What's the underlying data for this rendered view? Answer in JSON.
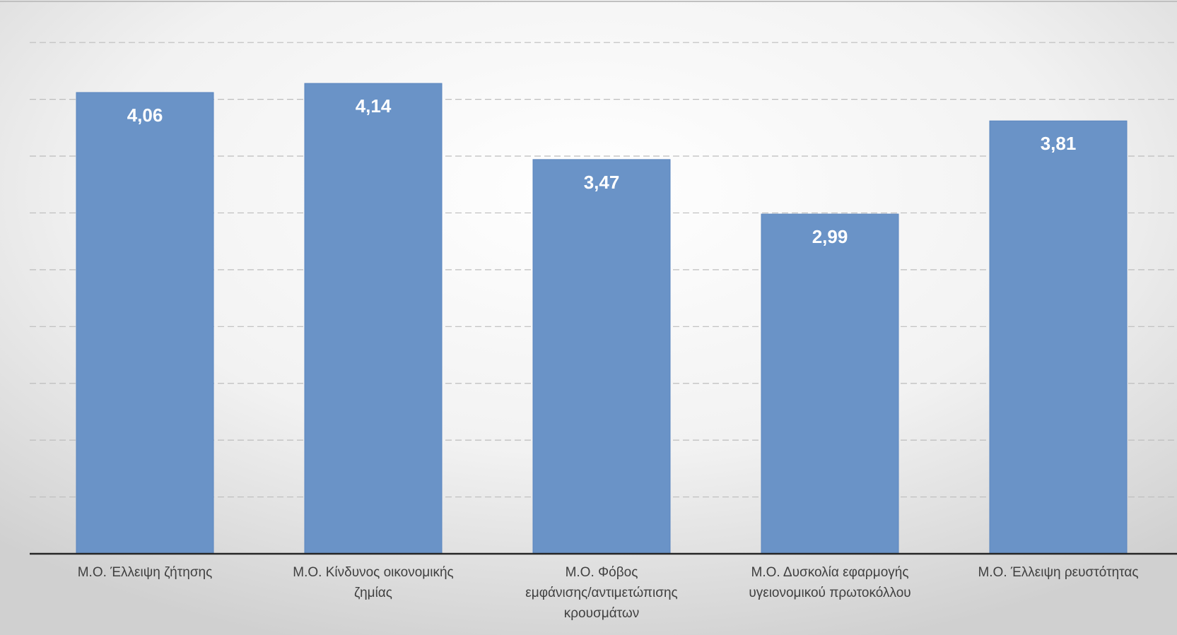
{
  "chart_data": {
    "type": "bar",
    "categories": [
      [
        "Μ.Ο. Έλλειψη ζήτησης"
      ],
      [
        "Μ.Ο. Κίνδυνος οικονομικής",
        "ζημίας"
      ],
      [
        "Μ.Ο. Φόβος",
        "εμφάνισης/αντιμετώπισης",
        "κρουσμάτων"
      ],
      [
        "Μ.Ο. Δυσκολία εφαρμογής",
        "υγειονομικού πρωτοκόλλου"
      ],
      [
        "Μ.Ο. Έλλειψη ρευστότητας"
      ]
    ],
    "values": [
      4.06,
      4.14,
      3.47,
      2.99,
      3.81
    ],
    "value_labels": [
      "4,06",
      "4,14",
      "3,47",
      "2,99",
      "3,81"
    ],
    "ylim": [
      0,
      4.7
    ],
    "gridlines": [
      0.5,
      1.0,
      1.5,
      2.0,
      2.5,
      3.0,
      3.5,
      4.0,
      4.5
    ],
    "grid": true,
    "grid_style": "dashed",
    "title": "",
    "xlabel": "",
    "ylabel": "",
    "bar_color": "#6a93c7",
    "bar_edge_color": "#5b86bf",
    "label_color": "#ffffff",
    "axis_color": "#262626",
    "background_center": "#ffffff",
    "background_edge": "#d4d4d4"
  }
}
